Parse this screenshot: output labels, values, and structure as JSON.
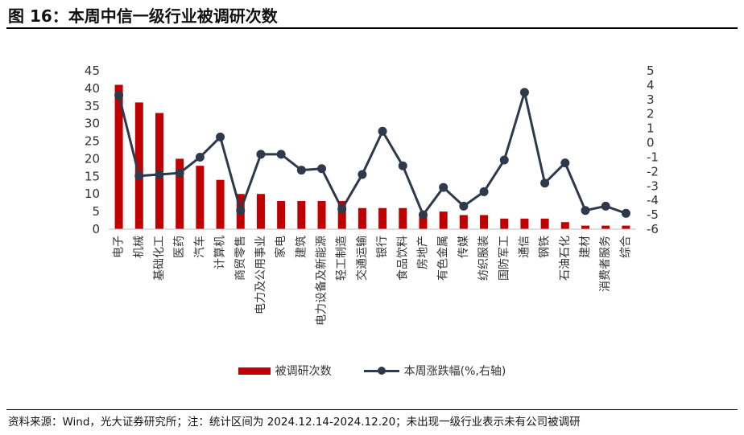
{
  "title": "图 16：本周中信一级行业被调研次数",
  "source": "资料来源：Wind，光大证券研究所；注：统计区间为 2024.12.14-2024.12.20；未出现一级行业表示未有公司被调研",
  "colors": {
    "bar": "#c00000",
    "line": "#2e3a4b",
    "axis": "#bfbfbf"
  },
  "chart_data": {
    "type": "bar",
    "categories": [
      "电子",
      "机械",
      "基础化工",
      "医药",
      "汽车",
      "计算机",
      "商贸零售",
      "电力及公用事业",
      "家电",
      "建筑",
      "电力设备及新能源",
      "轻工制造",
      "交通运输",
      "银行",
      "食品饮料",
      "房地产",
      "有色金属",
      "传媒",
      "纺织服装",
      "国防军工",
      "通信",
      "钢铁",
      "石油石化",
      "建材",
      "消费者服务",
      "综合"
    ],
    "series": [
      {
        "name": "被调研次数",
        "type": "bar",
        "axis": "left",
        "values": [
          41,
          36,
          33,
          20,
          18,
          14,
          10,
          10,
          8,
          8,
          8,
          8,
          6,
          6,
          6,
          4,
          5,
          4,
          4,
          3,
          3,
          3,
          2,
          1,
          1,
          1
        ]
      },
      {
        "name": "本周涨跌幅(%,右轴)",
        "type": "line",
        "axis": "right",
        "values": [
          3.3,
          -2.3,
          -2.2,
          -2.1,
          -1.0,
          0.4,
          -4.7,
          -0.8,
          -0.8,
          -1.9,
          -1.8,
          -4.6,
          -2.2,
          0.8,
          -1.6,
          -5.0,
          -3.1,
          -4.4,
          -3.4,
          -1.2,
          3.5,
          -2.8,
          -1.4,
          -4.7,
          -4.4,
          -4.9
        ]
      }
    ],
    "y_left": {
      "min": 0,
      "max": 45,
      "ticks": [
        "0",
        "5",
        "10",
        "15",
        "20",
        "25",
        "30",
        "35",
        "40",
        "45"
      ]
    },
    "y_right": {
      "min": -6,
      "max": 5,
      "ticks": [
        "-6",
        "-5",
        "-4",
        "-3",
        "-2",
        "-1",
        "0",
        "1",
        "2",
        "3",
        "4",
        "5"
      ]
    },
    "legend": {
      "position": "bottom",
      "bar_label": "被调研次数",
      "line_label": "本周涨跌幅(%,右轴)"
    },
    "grid": false
  }
}
